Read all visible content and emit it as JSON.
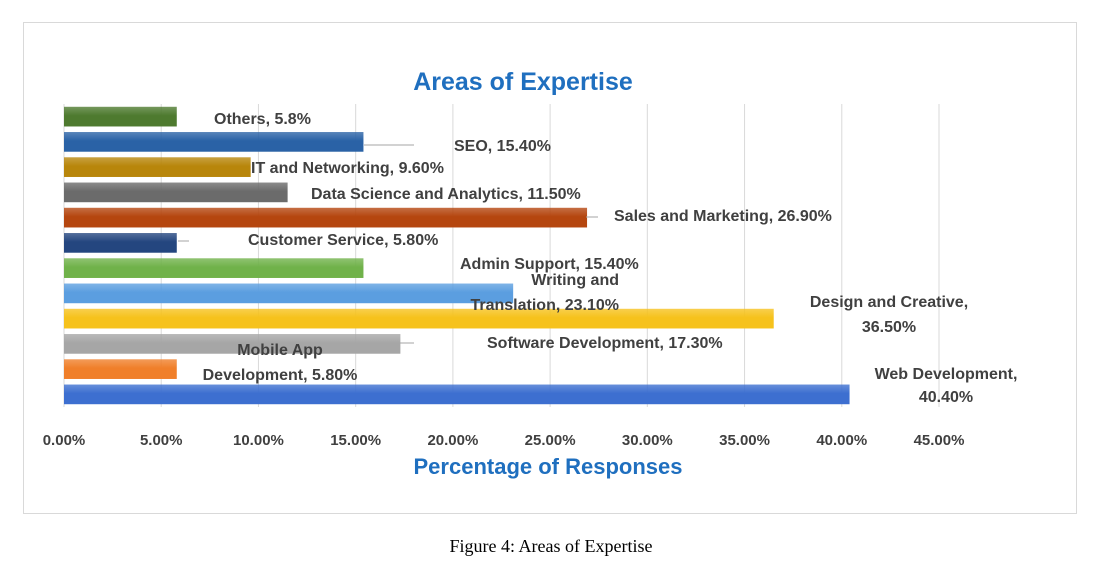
{
  "caption": "Figure 4: Areas of Expertise",
  "chart_data": {
    "type": "bar",
    "orientation": "horizontal",
    "title": "Areas of Expertise",
    "xlabel": "Percentage of Responses",
    "ylabel": "",
    "xlim": [
      0,
      45
    ],
    "xticks": [
      "0.00%",
      "5.00%",
      "10.00%",
      "15.00%",
      "20.00%",
      "25.00%",
      "30.00%",
      "35.00%",
      "40.00%",
      "45.00%"
    ],
    "grid": "vertical",
    "title_color": "#1f6fbf",
    "categories": [
      "Others",
      "SEO",
      "IT and Networking",
      "Data Science and Analytics",
      "Sales and Marketing",
      "Customer Service",
      "Admin Support",
      "Writing and Translation",
      "Design and Creative",
      "Software Development",
      "Mobile App Development",
      "Web Development"
    ],
    "values": [
      5.8,
      15.4,
      9.6,
      11.5,
      26.9,
      5.8,
      15.4,
      23.1,
      36.5,
      17.3,
      5.8,
      40.4
    ],
    "data_labels": [
      [
        "Others, 5.8%"
      ],
      [
        "SEO, 15.40%"
      ],
      [
        "IT and Networking, 9.60%"
      ],
      [
        "Data Science and Analytics, 11.50%"
      ],
      [
        "Sales and Marketing, 26.90%"
      ],
      [
        "Customer Service, 5.80%"
      ],
      [
        "Admin Support, 15.40%"
      ],
      [
        "Writing and",
        "Translation, 23.10%"
      ],
      [
        "Design and Creative,",
        "36.50%"
      ],
      [
        "Software Development, 17.30%"
      ],
      [
        "Mobile App",
        "Development, 5.80%"
      ],
      [
        "Web Development,",
        "40.40%"
      ]
    ],
    "colors": [
      "#4e7a2f",
      "#2a62a6",
      "#b8860b",
      "#6b6b6b",
      "#b5460f",
      "#24467f",
      "#70b24a",
      "#5b9ee0",
      "#f6c21c",
      "#a6a6a6",
      "#f07f2a",
      "#3d6fd0"
    ]
  }
}
